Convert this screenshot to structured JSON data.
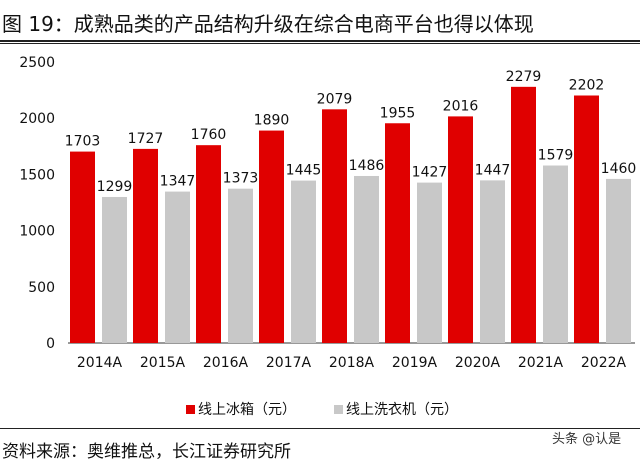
{
  "title": "图 19：成熟品类的产品结构升级在综合电商平台也得以体现",
  "source": "资料来源：奥维推总，长江证券研究所",
  "watermark": "头条 @认是",
  "chart_data": {
    "type": "bar",
    "categories": [
      "2014A",
      "2015A",
      "2016A",
      "2017A",
      "2018A",
      "2019A",
      "2020A",
      "2021A",
      "2022A"
    ],
    "series": [
      {
        "name": "线上冰箱（元）",
        "color": "#E00000",
        "values": [
          1703,
          1727,
          1760,
          1890,
          2079,
          1955,
          2016,
          2279,
          2202
        ]
      },
      {
        "name": "线上洗衣机（元）",
        "color": "#C8C8C8",
        "values": [
          1299,
          1347,
          1373,
          1445,
          1486,
          1427,
          1447,
          1579,
          1460
        ]
      }
    ],
    "ylim": [
      0,
      2500
    ],
    "yticks": [
      0,
      500,
      1000,
      1500,
      2000,
      2500
    ],
    "grid": false,
    "legend": "bottom"
  }
}
